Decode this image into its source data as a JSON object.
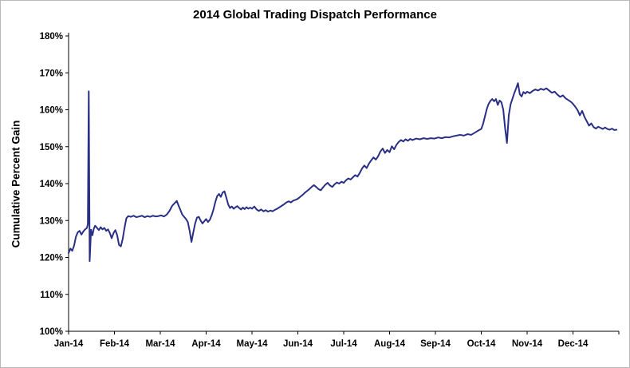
{
  "chart_data": {
    "type": "line",
    "title": "2014 Global Trading Dispatch Performance",
    "xlabel": "",
    "ylabel": "Cumulative Percent Gain",
    "x_tick_labels": [
      "Jan-14",
      "Feb-14",
      "Mar-14",
      "Apr-14",
      "May-14",
      "Jun-14",
      "Jul-14",
      "Aug-14",
      "Sep-14",
      "Oct-14",
      "Nov-14",
      "Dec-14"
    ],
    "y_ticks": [
      100,
      110,
      120,
      130,
      140,
      150,
      160,
      170,
      180
    ],
    "y_tick_suffix": "%",
    "ylim": [
      100,
      180
    ],
    "xlim_months": [
      0,
      12
    ],
    "grid": false,
    "legend": "none",
    "line_color": "#2A2F86",
    "axis_color": "#000000",
    "series": [
      {
        "name": "Cumulative Percent Gain",
        "points": [
          [
            0.0,
            121.2
          ],
          [
            0.04,
            122.4
          ],
          [
            0.08,
            121.8
          ],
          [
            0.12,
            123.2
          ],
          [
            0.16,
            125.6
          ],
          [
            0.2,
            126.8
          ],
          [
            0.24,
            127.2
          ],
          [
            0.28,
            126.2
          ],
          [
            0.32,
            127.0
          ],
          [
            0.36,
            127.6
          ],
          [
            0.4,
            128.0
          ],
          [
            0.42,
            129.0
          ],
          [
            0.44,
            165.0
          ],
          [
            0.46,
            119.0
          ],
          [
            0.49,
            127.5
          ],
          [
            0.52,
            126.0
          ],
          [
            0.55,
            127.8
          ],
          [
            0.58,
            128.6
          ],
          [
            0.62,
            128.0
          ],
          [
            0.66,
            127.4
          ],
          [
            0.7,
            128.2
          ],
          [
            0.74,
            127.6
          ],
          [
            0.78,
            128.0
          ],
          [
            0.82,
            127.2
          ],
          [
            0.86,
            127.6
          ],
          [
            0.9,
            126.6
          ],
          [
            0.94,
            125.2
          ],
          [
            0.98,
            126.6
          ],
          [
            1.02,
            127.4
          ],
          [
            1.06,
            126.0
          ],
          [
            1.1,
            123.4
          ],
          [
            1.14,
            123.0
          ],
          [
            1.18,
            125.0
          ],
          [
            1.22,
            128.0
          ],
          [
            1.26,
            130.6
          ],
          [
            1.3,
            131.2
          ],
          [
            1.36,
            131.0
          ],
          [
            1.42,
            131.3
          ],
          [
            1.48,
            130.9
          ],
          [
            1.54,
            131.1
          ],
          [
            1.6,
            131.3
          ],
          [
            1.66,
            130.9
          ],
          [
            1.72,
            131.2
          ],
          [
            1.78,
            131.0
          ],
          [
            1.84,
            131.3
          ],
          [
            1.9,
            131.1
          ],
          [
            1.96,
            131.2
          ],
          [
            2.02,
            131.4
          ],
          [
            2.08,
            131.1
          ],
          [
            2.14,
            131.6
          ],
          [
            2.2,
            132.6
          ],
          [
            2.26,
            134.0
          ],
          [
            2.32,
            134.8
          ],
          [
            2.36,
            135.3
          ],
          [
            2.4,
            134.0
          ],
          [
            2.44,
            132.8
          ],
          [
            2.48,
            131.6
          ],
          [
            2.52,
            131.0
          ],
          [
            2.56,
            130.4
          ],
          [
            2.6,
            129.6
          ],
          [
            2.64,
            127.2
          ],
          [
            2.68,
            124.2
          ],
          [
            2.72,
            126.8
          ],
          [
            2.76,
            129.2
          ],
          [
            2.8,
            130.8
          ],
          [
            2.84,
            131.0
          ],
          [
            2.88,
            130.0
          ],
          [
            2.92,
            129.2
          ],
          [
            2.96,
            129.8
          ],
          [
            3.0,
            130.4
          ],
          [
            3.04,
            129.6
          ],
          [
            3.08,
            130.2
          ],
          [
            3.12,
            131.4
          ],
          [
            3.16,
            133.0
          ],
          [
            3.2,
            135.0
          ],
          [
            3.24,
            136.6
          ],
          [
            3.28,
            137.2
          ],
          [
            3.32,
            136.4
          ],
          [
            3.36,
            137.6
          ],
          [
            3.4,
            137.9
          ],
          [
            3.44,
            136.2
          ],
          [
            3.48,
            134.4
          ],
          [
            3.52,
            133.4
          ],
          [
            3.56,
            133.8
          ],
          [
            3.6,
            133.2
          ],
          [
            3.64,
            133.6
          ],
          [
            3.68,
            133.9
          ],
          [
            3.72,
            133.4
          ],
          [
            3.76,
            133.0
          ],
          [
            3.8,
            133.5
          ],
          [
            3.84,
            133.1
          ],
          [
            3.88,
            133.6
          ],
          [
            3.92,
            133.2
          ],
          [
            3.96,
            133.5
          ],
          [
            4.0,
            133.2
          ],
          [
            4.05,
            133.8
          ],
          [
            4.1,
            133.0
          ],
          [
            4.15,
            132.6
          ],
          [
            4.2,
            133.0
          ],
          [
            4.25,
            132.5
          ],
          [
            4.3,
            132.8
          ],
          [
            4.35,
            132.4
          ],
          [
            4.4,
            132.7
          ],
          [
            4.45,
            132.5
          ],
          [
            4.5,
            132.9
          ],
          [
            4.55,
            133.2
          ],
          [
            4.6,
            133.6
          ],
          [
            4.65,
            134.0
          ],
          [
            4.7,
            134.4
          ],
          [
            4.75,
            134.9
          ],
          [
            4.8,
            135.2
          ],
          [
            4.85,
            134.9
          ],
          [
            4.9,
            135.4
          ],
          [
            4.95,
            135.6
          ],
          [
            5.0,
            135.9
          ],
          [
            5.05,
            136.4
          ],
          [
            5.1,
            136.9
          ],
          [
            5.15,
            137.5
          ],
          [
            5.2,
            138.0
          ],
          [
            5.25,
            138.5
          ],
          [
            5.3,
            139.1
          ],
          [
            5.35,
            139.6
          ],
          [
            5.4,
            139.1
          ],
          [
            5.45,
            138.5
          ],
          [
            5.5,
            138.2
          ],
          [
            5.55,
            139.0
          ],
          [
            5.6,
            139.7
          ],
          [
            5.65,
            140.2
          ],
          [
            5.7,
            139.5
          ],
          [
            5.75,
            139.1
          ],
          [
            5.8,
            139.8
          ],
          [
            5.85,
            140.3
          ],
          [
            5.9,
            140.0
          ],
          [
            5.95,
            140.5
          ],
          [
            6.0,
            140.2
          ],
          [
            6.05,
            140.9
          ],
          [
            6.1,
            141.4
          ],
          [
            6.15,
            141.1
          ],
          [
            6.2,
            141.7
          ],
          [
            6.25,
            142.3
          ],
          [
            6.3,
            141.9
          ],
          [
            6.35,
            142.9
          ],
          [
            6.4,
            144.1
          ],
          [
            6.45,
            144.9
          ],
          [
            6.5,
            144.2
          ],
          [
            6.55,
            145.4
          ],
          [
            6.6,
            146.3
          ],
          [
            6.65,
            147.1
          ],
          [
            6.7,
            146.5
          ],
          [
            6.75,
            147.4
          ],
          [
            6.8,
            148.7
          ],
          [
            6.85,
            149.5
          ],
          [
            6.9,
            148.3
          ],
          [
            6.95,
            149.1
          ],
          [
            7.0,
            148.5
          ],
          [
            7.05,
            150.1
          ],
          [
            7.1,
            149.3
          ],
          [
            7.15,
            150.5
          ],
          [
            7.2,
            151.3
          ],
          [
            7.25,
            151.8
          ],
          [
            7.3,
            151.4
          ],
          [
            7.35,
            152.0
          ],
          [
            7.4,
            151.6
          ],
          [
            7.45,
            152.1
          ],
          [
            7.5,
            151.8
          ],
          [
            7.58,
            152.2
          ],
          [
            7.66,
            152.0
          ],
          [
            7.74,
            152.3
          ],
          [
            7.82,
            152.1
          ],
          [
            7.9,
            152.3
          ],
          [
            7.98,
            152.2
          ],
          [
            8.06,
            152.5
          ],
          [
            8.14,
            152.3
          ],
          [
            8.22,
            152.6
          ],
          [
            8.3,
            152.5
          ],
          [
            8.38,
            152.8
          ],
          [
            8.46,
            153.0
          ],
          [
            8.54,
            153.2
          ],
          [
            8.62,
            153.0
          ],
          [
            8.7,
            153.4
          ],
          [
            8.78,
            153.2
          ],
          [
            8.86,
            153.8
          ],
          [
            8.94,
            154.4
          ],
          [
            9.0,
            154.8
          ],
          [
            9.04,
            156.2
          ],
          [
            9.08,
            158.2
          ],
          [
            9.12,
            160.2
          ],
          [
            9.16,
            161.6
          ],
          [
            9.2,
            162.4
          ],
          [
            9.24,
            162.9
          ],
          [
            9.28,
            162.3
          ],
          [
            9.32,
            162.9
          ],
          [
            9.36,
            161.3
          ],
          [
            9.4,
            162.5
          ],
          [
            9.44,
            162.0
          ],
          [
            9.48,
            160.0
          ],
          [
            9.52,
            155.0
          ],
          [
            9.56,
            151.0
          ],
          [
            9.6,
            158.5
          ],
          [
            9.64,
            161.5
          ],
          [
            9.68,
            163.0
          ],
          [
            9.72,
            164.5
          ],
          [
            9.76,
            165.8
          ],
          [
            9.8,
            167.2
          ],
          [
            9.84,
            164.2
          ],
          [
            9.88,
            163.6
          ],
          [
            9.92,
            164.8
          ],
          [
            9.96,
            164.4
          ],
          [
            10.0,
            164.9
          ],
          [
            10.06,
            164.5
          ],
          [
            10.12,
            165.1
          ],
          [
            10.18,
            165.5
          ],
          [
            10.24,
            165.2
          ],
          [
            10.3,
            165.7
          ],
          [
            10.36,
            165.4
          ],
          [
            10.42,
            165.8
          ],
          [
            10.48,
            165.2
          ],
          [
            10.54,
            164.6
          ],
          [
            10.6,
            164.9
          ],
          [
            10.66,
            164.1
          ],
          [
            10.72,
            163.5
          ],
          [
            10.78,
            163.9
          ],
          [
            10.84,
            163.1
          ],
          [
            10.9,
            162.6
          ],
          [
            10.96,
            162.1
          ],
          [
            11.0,
            161.6
          ],
          [
            11.05,
            160.8
          ],
          [
            11.1,
            159.9
          ],
          [
            11.15,
            158.5
          ],
          [
            11.2,
            159.7
          ],
          [
            11.25,
            158.1
          ],
          [
            11.3,
            156.9
          ],
          [
            11.35,
            155.7
          ],
          [
            11.4,
            156.3
          ],
          [
            11.45,
            155.3
          ],
          [
            11.5,
            154.9
          ],
          [
            11.55,
            155.4
          ],
          [
            11.6,
            155.1
          ],
          [
            11.65,
            154.8
          ],
          [
            11.7,
            155.2
          ],
          [
            11.75,
            154.8
          ],
          [
            11.8,
            154.6
          ],
          [
            11.85,
            154.9
          ],
          [
            11.9,
            154.5
          ],
          [
            11.95,
            154.6
          ]
        ]
      }
    ]
  }
}
